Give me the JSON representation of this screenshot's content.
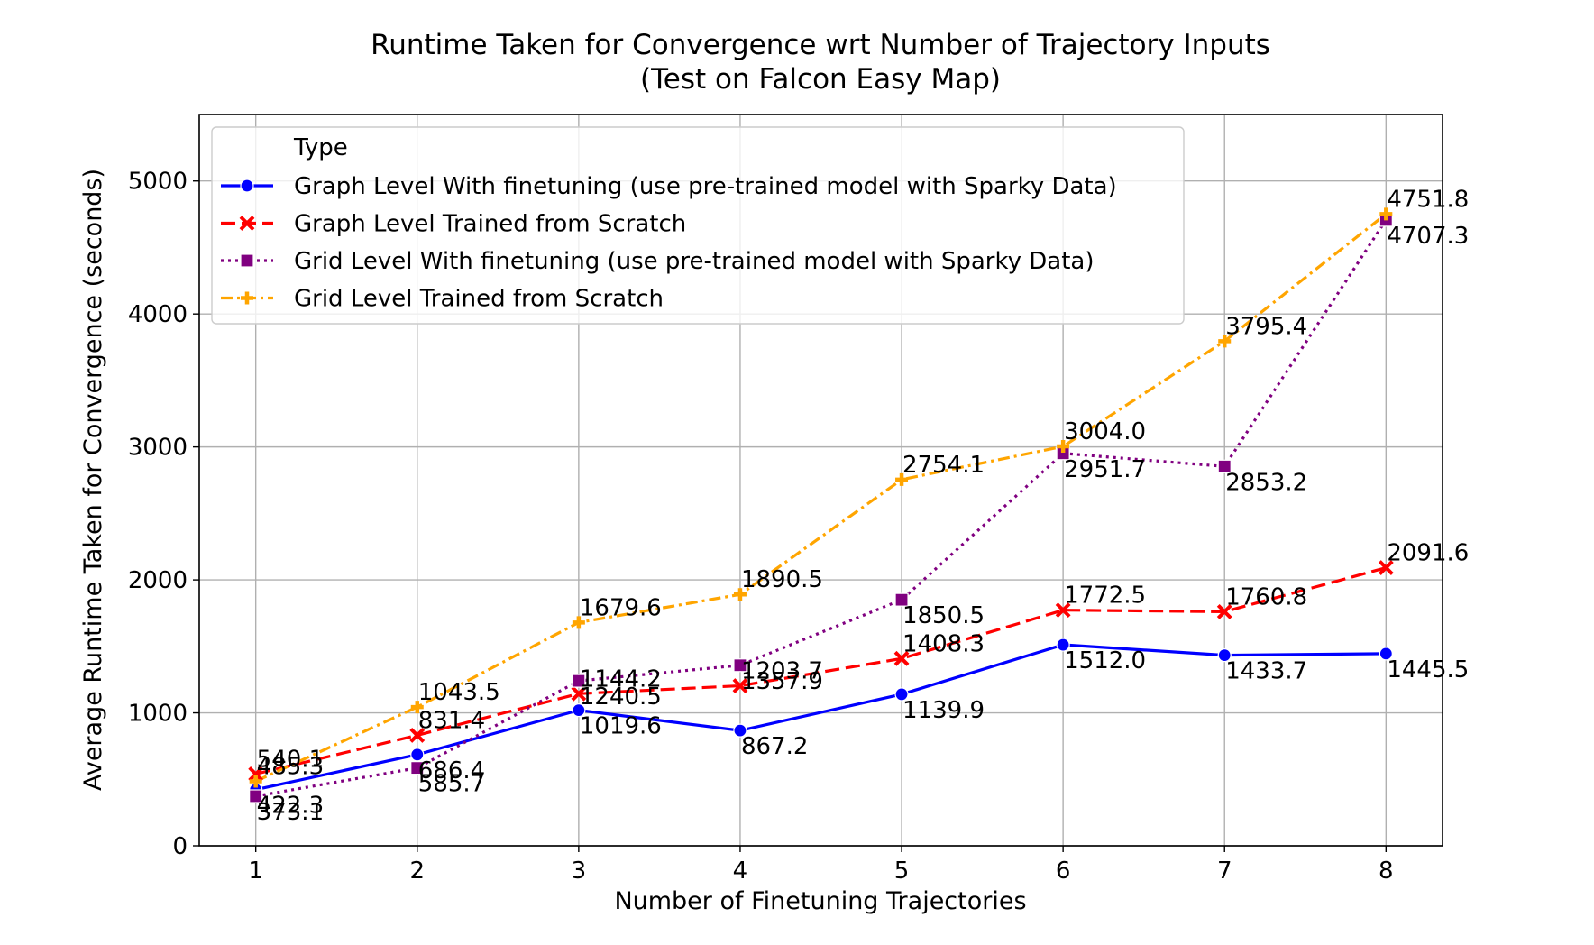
{
  "chart_data": {
    "type": "line",
    "title_line1": "Runtime Taken for Convergence wrt Number of Trajectory Inputs",
    "title_line2": "(Test on Falcon Easy Map)",
    "xlabel": "Number of Finetuning Trajectories",
    "ylabel": "Average Runtime Taken for Convergence (seconds)",
    "x": [
      1,
      2,
      3,
      4,
      5,
      6,
      7,
      8
    ],
    "xlim": [
      0.65,
      8.35
    ],
    "ylim": [
      0,
      5500
    ],
    "x_ticks": [
      1,
      2,
      3,
      4,
      5,
      6,
      7,
      8
    ],
    "y_ticks": [
      0,
      1000,
      2000,
      3000,
      4000,
      5000
    ],
    "grid": true,
    "legend": {
      "title": "Type",
      "placement": "upper-left"
    },
    "series": [
      {
        "name": "Graph Level With finetuning (use pre-trained model with Sparky Data)",
        "color": "#0000ff",
        "marker": "circle",
        "dash": "solid",
        "values": [
          422.3,
          686.4,
          1019.6,
          867.2,
          1139.9,
          1512.0,
          1433.7,
          1445.5
        ],
        "labels": [
          "422.3",
          "686.4",
          "1019.6",
          "867.2",
          "1139.9",
          "1512.0",
          "1433.7",
          "1445.5"
        ]
      },
      {
        "name": "Graph Level Trained from Scratch",
        "color": "#ff0000",
        "marker": "x",
        "dash": "dashed",
        "values": [
          540.1,
          831.4,
          1144.2,
          1203.7,
          1408.3,
          1772.5,
          1760.8,
          2091.6
        ],
        "labels": [
          "540.1",
          "831.4",
          "1144.2",
          "1203.7",
          "1408.3",
          "1772.5",
          "1760.8",
          "2091.6"
        ]
      },
      {
        "name": "Grid Level With finetuning (use pre-trained model with Sparky Data)",
        "color": "#800080",
        "marker": "square",
        "dash": "dotted",
        "values": [
          373.1,
          585.7,
          1240.5,
          1357.9,
          1850.5,
          2951.7,
          2853.2,
          4707.3
        ],
        "labels": [
          "373.1",
          "585.7",
          "1240.5",
          "1357.9",
          "1850.5",
          "2951.7",
          "2853.2",
          "4707.3"
        ]
      },
      {
        "name": "Grid Level Trained from Scratch",
        "color": "#ffa500",
        "marker": "plus",
        "dash": "dashdot",
        "values": [
          485.3,
          1043.5,
          1679.6,
          1890.5,
          2754.1,
          3004.0,
          3795.4,
          4751.8
        ],
        "labels": [
          "485.3",
          "1043.5",
          "1679.6",
          "1890.5",
          "2754.1",
          "3004.0",
          "3795.4",
          "4751.8"
        ]
      }
    ]
  }
}
